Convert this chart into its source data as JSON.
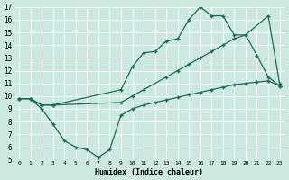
{
  "bg_color": "#cce8e0",
  "line_color": "#1a6b5a",
  "xlabel": "Humidex (Indice chaleur)",
  "xlim": [
    -0.5,
    23.5
  ],
  "ylim": [
    5,
    17
  ],
  "xticks": [
    0,
    1,
    2,
    3,
    4,
    5,
    6,
    7,
    8,
    9,
    10,
    11,
    12,
    13,
    14,
    15,
    16,
    17,
    18,
    19,
    20,
    21,
    22,
    23
  ],
  "yticks": [
    5,
    6,
    7,
    8,
    9,
    10,
    11,
    12,
    13,
    14,
    15,
    16,
    17
  ],
  "line1_x": [
    0,
    1,
    2,
    3,
    9,
    10,
    11,
    12,
    13,
    14,
    15,
    16,
    17,
    18,
    19,
    20,
    22,
    23
  ],
  "line1_y": [
    9.8,
    9.8,
    9.3,
    9.3,
    10.5,
    12.3,
    13.4,
    13.5,
    14.3,
    14.5,
    16.0,
    17.0,
    16.3,
    16.3,
    14.8,
    14.8,
    16.3,
    11.0
  ],
  "line2_x": [
    0,
    1,
    2,
    3,
    9,
    10,
    11,
    13,
    14,
    15,
    16,
    17,
    18,
    19,
    20,
    21,
    22,
    23
  ],
  "line2_y": [
    9.8,
    9.8,
    9.3,
    9.3,
    9.5,
    10.0,
    10.5,
    11.5,
    12.0,
    12.5,
    13.0,
    13.5,
    14.0,
    14.5,
    14.8,
    13.2,
    11.5,
    10.8
  ],
  "line3_x": [
    0,
    1,
    2,
    3,
    4,
    5,
    6,
    7,
    8,
    9,
    10,
    11,
    12,
    13,
    14,
    15,
    16,
    17,
    18,
    19,
    20,
    21,
    22,
    23
  ],
  "line3_y": [
    9.8,
    9.8,
    9.0,
    7.8,
    6.5,
    6.0,
    5.8,
    5.2,
    5.8,
    8.5,
    9.0,
    9.3,
    9.5,
    9.7,
    9.9,
    10.1,
    10.3,
    10.5,
    10.7,
    10.9,
    11.0,
    11.1,
    11.2,
    10.8
  ]
}
